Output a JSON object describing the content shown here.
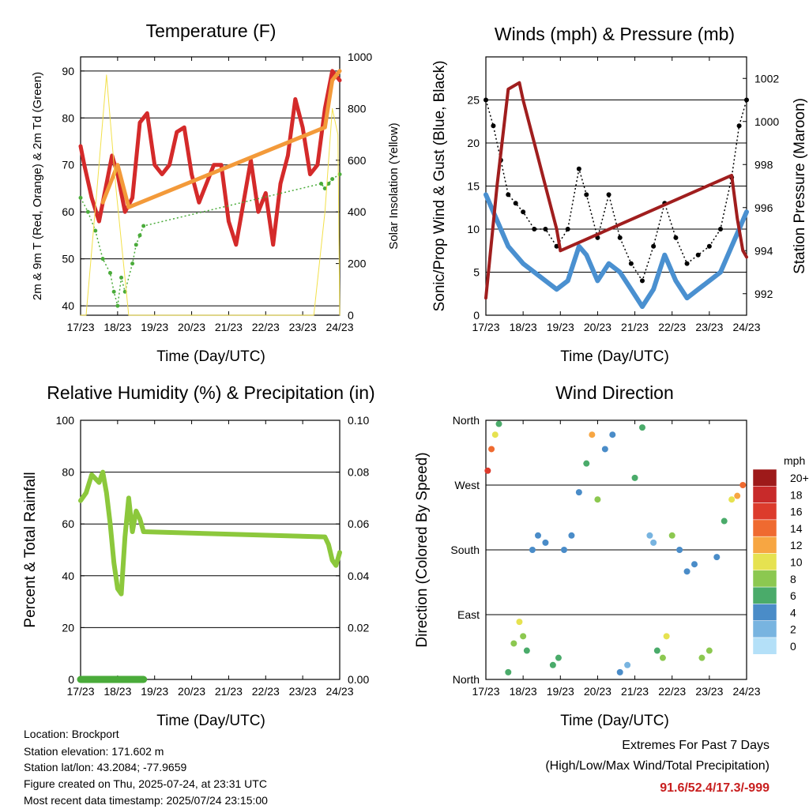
{
  "chart_data": [
    {
      "type": "line",
      "title": "Temperature (F)",
      "xlabel": "Time (Day/UTC)",
      "ylabel": "2m & 9m T (Red, Orange) & 2m Td (Green)",
      "y2label": "Solar Insolation (Yellow)",
      "x_ticks": [
        "17/23",
        "18/23",
        "19/23",
        "20/23",
        "21/23",
        "22/23",
        "23/23",
        "24/23"
      ],
      "ylim": [
        38,
        93
      ],
      "y_ticks": [
        40,
        50,
        60,
        70,
        80,
        90
      ],
      "y2lim": [
        0,
        1000
      ],
      "y2_ticks": [
        0,
        200,
        400,
        600,
        800,
        1000
      ],
      "grid": "horizontal",
      "series": [
        {
          "name": "2m T",
          "color": "#d42a2a",
          "x": [
            0,
            0.1,
            0.3,
            0.5,
            0.7,
            0.85,
            1.0,
            1.2,
            1.4,
            1.6,
            1.8,
            2.0,
            2.2,
            2.4,
            2.6,
            2.8,
            3.0,
            3.2,
            3.4,
            3.6,
            3.8,
            4.0,
            4.2,
            4.4,
            4.6,
            4.8,
            5.0,
            5.2,
            5.4,
            5.6,
            5.8,
            6.0,
            6.2,
            6.4,
            6.6,
            6.8,
            7.0
          ],
          "values": [
            74,
            70,
            63,
            58,
            66,
            72,
            68,
            60,
            63,
            79,
            81,
            70,
            68,
            70,
            77,
            78,
            68,
            62,
            66,
            70,
            70,
            58,
            53,
            62,
            71,
            60,
            64,
            53,
            66,
            72,
            84,
            78,
            68,
            70,
            82,
            90,
            88
          ]
        },
        {
          "name": "9m T",
          "color": "#f39a3a",
          "x": [
            0.6,
            0.8,
            1.0,
            1.2,
            1.3,
            6.6,
            6.8,
            7.0
          ],
          "values": [
            62,
            66,
            70,
            64,
            61,
            78,
            88,
            90
          ]
        },
        {
          "name": "2m Td",
          "color": "#4aab3a",
          "x": [
            0,
            0.2,
            0.4,
            0.6,
            0.8,
            0.9,
            1.0,
            1.1,
            1.2,
            1.4,
            1.5,
            1.6,
            1.7,
            6.5,
            6.6,
            6.7,
            6.8,
            7.0
          ],
          "values": [
            63,
            60,
            56,
            50,
            47,
            43,
            40,
            46,
            43,
            49,
            53,
            55,
            57,
            66,
            65,
            66,
            67,
            68
          ]
        },
        {
          "name": "Solar Insolation",
          "color": "#f2e04a",
          "x": [
            0,
            0.15,
            0.45,
            0.7,
            0.95,
            1.3,
            1.5,
            6.3,
            6.6,
            6.8,
            6.95,
            7.0
          ],
          "values": [
            0,
            0,
            500,
            930,
            500,
            0,
            0,
            0,
            400,
            800,
            700,
            0
          ]
        }
      ]
    },
    {
      "type": "line",
      "title": "Winds (mph) & Pressure (mb)",
      "xlabel": "Time (Day/UTC)",
      "ylabel": "Sonic/Prop Wind & Gust (Blue, Black)",
      "y2label": "Station Pressure (Maroon)",
      "x_ticks": [
        "17/23",
        "18/23",
        "19/23",
        "20/23",
        "21/23",
        "22/23",
        "23/23",
        "24/23"
      ],
      "ylim": [
        0,
        30
      ],
      "y_ticks": [
        0,
        5,
        10,
        15,
        20,
        25
      ],
      "y2lim": [
        991.0,
        1003.0
      ],
      "y2_ticks": [
        992,
        994,
        996,
        998,
        1000,
        1002
      ],
      "grid": "horizontal",
      "series": [
        {
          "name": "Wind",
          "color": "#4a90d0",
          "x": [
            0,
            0.2,
            0.4,
            0.6,
            0.8,
            1.0,
            1.3,
            1.6,
            1.9,
            2.2,
            2.5,
            2.7,
            3.0,
            3.3,
            3.6,
            3.9,
            4.2,
            4.5,
            4.8,
            5.1,
            5.4,
            5.7,
            6.0,
            6.3,
            6.6,
            6.8,
            7.0
          ],
          "values": [
            14,
            12,
            10,
            8,
            7,
            6,
            5,
            4,
            3,
            4,
            8,
            7,
            4,
            6,
            5,
            3,
            1,
            3,
            7,
            4,
            2,
            3,
            4,
            5,
            8,
            10,
            12
          ]
        },
        {
          "name": "Gust",
          "color": "#000000",
          "x": [
            0,
            0.2,
            0.4,
            0.6,
            0.8,
            1.0,
            1.3,
            1.6,
            1.9,
            2.2,
            2.5,
            2.7,
            3.0,
            3.3,
            3.6,
            3.9,
            4.2,
            4.5,
            4.8,
            5.1,
            5.4,
            5.7,
            6.0,
            6.3,
            6.6,
            6.8,
            7.0
          ],
          "values": [
            25,
            22,
            18,
            14,
            13,
            12,
            10,
            10,
            8,
            10,
            17,
            14,
            9,
            14,
            9,
            6,
            4,
            8,
            13,
            9,
            6,
            7,
            8,
            10,
            16,
            22,
            25
          ]
        },
        {
          "name": "Station Pressure",
          "color": "#a01e1e",
          "x": [
            0,
            0.3,
            0.6,
            0.9,
            1.0,
            1.3,
            1.6,
            1.9,
            2.0,
            6.6,
            6.75,
            6.9,
            7.0
          ],
          "values": [
            991.8,
            997.0,
            1001.5,
            1001.8,
            1001.0,
            999.0,
            997.0,
            995.0,
            994.0,
            997.5,
            995.5,
            994.0,
            993.7
          ]
        }
      ]
    },
    {
      "type": "line",
      "title": "Relative Humidity (%) & Precipitation (in)",
      "xlabel": "Time (Day/UTC)",
      "ylabel": "Percent & Total Rainfall",
      "x_ticks": [
        "17/23",
        "18/23",
        "19/23",
        "20/23",
        "21/23",
        "22/23",
        "23/23",
        "24/23"
      ],
      "ylim": [
        0,
        100
      ],
      "y_ticks": [
        0,
        20,
        40,
        60,
        80,
        100
      ],
      "y2lim": [
        0,
        0.1
      ],
      "y2_ticks": [
        "0.00",
        "0.02",
        "0.04",
        "0.06",
        "0.08",
        "0.10"
      ],
      "grid": "horizontal",
      "series": [
        {
          "name": "RH",
          "color": "#8cc83c",
          "x": [
            0,
            0.15,
            0.3,
            0.5,
            0.6,
            0.7,
            0.8,
            0.9,
            1.0,
            1.1,
            1.2,
            1.3,
            1.4,
            1.5,
            1.6,
            1.7,
            6.6,
            6.7,
            6.8,
            6.9,
            7.0
          ],
          "values": [
            69,
            72,
            79,
            76,
            80,
            72,
            60,
            45,
            35,
            33,
            55,
            70,
            57,
            65,
            62,
            57,
            55,
            52,
            46,
            44,
            49
          ]
        },
        {
          "name": "Precipitation",
          "color": "#4aab3a",
          "x": [
            0,
            1.7
          ],
          "values": [
            0,
            0
          ]
        }
      ]
    },
    {
      "type": "scatter",
      "title": "Wind Direction",
      "xlabel": "Time (Day/UTC)",
      "ylabel": "Direction (Colored By Speed)",
      "x_ticks": [
        "17/23",
        "18/23",
        "19/23",
        "20/23",
        "21/23",
        "22/23",
        "23/23",
        "24/23"
      ],
      "y_ticks": [
        "North",
        "East",
        "South",
        "West",
        "North"
      ],
      "ylim": [
        0,
        360
      ],
      "legend_title": "mph",
      "legend_labels": [
        "20+",
        "18",
        "16",
        "14",
        "12",
        "10",
        "8",
        "6",
        "4",
        "2",
        "0"
      ],
      "legend_colors": [
        "#9e1a1a",
        "#c82a2a",
        "#dc3b2c",
        "#ef6a30",
        "#f7a642",
        "#e6e250",
        "#8cc850",
        "#4aab6a",
        "#4a8cc8",
        "#78b4e0",
        "#b4e0f8"
      ],
      "x": [
        0.05,
        0.15,
        0.25,
        0.35,
        0.6,
        0.75,
        0.9,
        1.0,
        1.1,
        1.25,
        1.4,
        1.6,
        1.8,
        1.95,
        2.1,
        2.3,
        2.5,
        2.7,
        2.85,
        3.0,
        3.2,
        3.4,
        3.6,
        3.8,
        4.0,
        4.2,
        4.4,
        4.5,
        4.6,
        4.75,
        4.85,
        5.0,
        5.2,
        5.4,
        5.6,
        5.8,
        6.0,
        6.2,
        6.4,
        6.6,
        6.75,
        6.9
      ],
      "values": [
        290,
        320,
        340,
        355,
        10,
        50,
        80,
        60,
        40,
        180,
        200,
        190,
        20,
        30,
        180,
        200,
        260,
        300,
        340,
        250,
        320,
        340,
        10,
        20,
        280,
        350,
        200,
        190,
        40,
        30,
        60,
        200,
        180,
        150,
        160,
        30,
        40,
        170,
        220,
        250,
        255,
        270
      ],
      "speeds": [
        15,
        13,
        10,
        6,
        5,
        7,
        9,
        8,
        6,
        4,
        3,
        4,
        5,
        6,
        3,
        4,
        4,
        5,
        11,
        7,
        4,
        3,
        3,
        2,
        6,
        5,
        2,
        1,
        6,
        8,
        9,
        7,
        4,
        3,
        3,
        8,
        7,
        4,
        6,
        10,
        12,
        14
      ]
    }
  ],
  "footer": {
    "location": "Location: Brockport",
    "elevation": "Station elevation: 171.602 m",
    "latlon": "Station lat/lon: 43.2084; -77.9659",
    "created": "Figure created on Thu, 2025-07-24, at 23:31 UTC",
    "recent": "Most recent data timestamp: 2025/07/24 23:15:00",
    "extremes_title": "Extremes For Past 7 Days",
    "extremes_sub": "(High/Low/Max Wind/Total Precipitation)",
    "extremes_values": "91.6/52.4/17.3/-999"
  }
}
